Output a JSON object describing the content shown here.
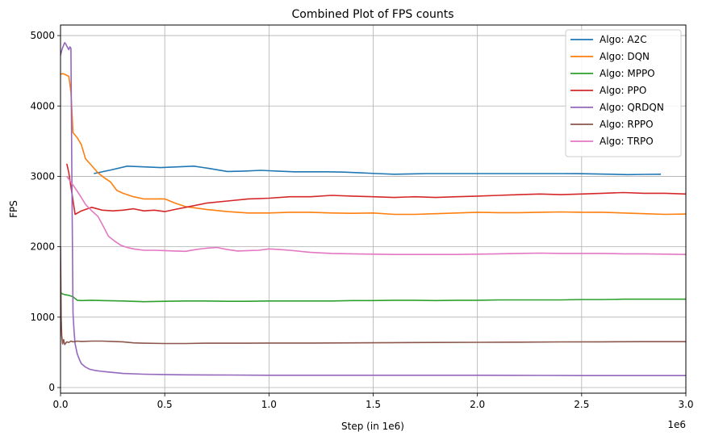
{
  "chart_data": {
    "type": "line",
    "title": "Combined Plot of FPS counts",
    "xlabel": "Step (in 1e6)",
    "ylabel": "FPS",
    "x_offset_label": "1e6",
    "xlim": [
      0,
      3.0
    ],
    "ylim": [
      -80,
      5150
    ],
    "xticks": [
      0.0,
      0.5,
      1.0,
      1.5,
      2.0,
      2.5,
      3.0
    ],
    "xtick_labels": [
      "0.0",
      "0.5",
      "1.0",
      "1.5",
      "2.0",
      "2.5",
      "3.0"
    ],
    "yticks": [
      0,
      1000,
      2000,
      3000,
      4000,
      5000
    ],
    "ytick_labels": [
      "0",
      "1000",
      "2000",
      "3000",
      "4000",
      "5000"
    ],
    "grid": true,
    "legend_position": "top-right",
    "series": [
      {
        "name": "Algo: A2C",
        "color": "#1f77b4",
        "x": [
          0.16,
          0.24,
          0.32,
          0.4,
          0.48,
          0.56,
          0.64,
          0.72,
          0.8,
          0.88,
          0.96,
          1.04,
          1.12,
          1.2,
          1.28,
          1.36,
          1.44,
          1.52,
          1.6,
          1.68,
          1.76,
          1.84,
          1.92,
          2.0,
          2.08,
          2.16,
          2.24,
          2.32,
          2.4,
          2.48,
          2.56,
          2.64,
          2.72,
          2.8,
          2.88
        ],
        "y": [
          3040,
          3090,
          3145,
          3135,
          3125,
          3135,
          3145,
          3110,
          3070,
          3075,
          3085,
          3075,
          3065,
          3065,
          3065,
          3060,
          3050,
          3040,
          3030,
          3035,
          3040,
          3040,
          3040,
          3040,
          3040,
          3040,
          3040,
          3040,
          3040,
          3038,
          3035,
          3030,
          3025,
          3028,
          3030
        ]
      },
      {
        "name": "Algo: DQN",
        "color": "#ff7f0e",
        "x": [
          0.0,
          0.01,
          0.02,
          0.04,
          0.05,
          0.06,
          0.08,
          0.1,
          0.12,
          0.15,
          0.18,
          0.21,
          0.24,
          0.27,
          0.3,
          0.35,
          0.4,
          0.45,
          0.5,
          0.55,
          0.6,
          0.7,
          0.8,
          0.9,
          1.0,
          1.1,
          1.2,
          1.3,
          1.4,
          1.5,
          1.6,
          1.7,
          1.8,
          1.9,
          2.0,
          2.1,
          2.2,
          2.3,
          2.4,
          2.5,
          2.6,
          2.7,
          2.8,
          2.9,
          3.0
        ],
        "y": [
          4450,
          4460,
          4450,
          4420,
          4200,
          3620,
          3550,
          3450,
          3250,
          3150,
          3050,
          2980,
          2920,
          2800,
          2760,
          2710,
          2680,
          2680,
          2680,
          2620,
          2570,
          2530,
          2500,
          2480,
          2480,
          2490,
          2490,
          2480,
          2475,
          2480,
          2460,
          2460,
          2470,
          2480,
          2490,
          2485,
          2485,
          2490,
          2495,
          2490,
          2490,
          2480,
          2470,
          2460,
          2465
        ]
      },
      {
        "name": "Algo: MPPO",
        "color": "#2ca02c",
        "x": [
          0.0,
          0.01,
          0.02,
          0.04,
          0.06,
          0.08,
          0.1,
          0.15,
          0.2,
          0.3,
          0.4,
          0.5,
          0.6,
          0.7,
          0.8,
          0.9,
          1.0,
          1.1,
          1.2,
          1.3,
          1.4,
          1.5,
          1.6,
          1.7,
          1.8,
          1.9,
          2.0,
          2.1,
          2.2,
          2.3,
          2.4,
          2.5,
          2.6,
          2.7,
          2.8,
          2.9,
          3.0
        ],
        "y": [
          1350,
          1330,
          1320,
          1310,
          1290,
          1240,
          1235,
          1240,
          1235,
          1230,
          1220,
          1225,
          1230,
          1230,
          1225,
          1225,
          1230,
          1230,
          1230,
          1230,
          1235,
          1235,
          1240,
          1240,
          1235,
          1240,
          1240,
          1245,
          1245,
          1245,
          1245,
          1250,
          1250,
          1255,
          1255,
          1255,
          1255
        ]
      },
      {
        "name": "Algo: PPO",
        "color": "#d62728",
        "x": [
          0.03,
          0.04,
          0.07,
          0.1,
          0.15,
          0.2,
          0.25,
          0.3,
          0.35,
          0.4,
          0.45,
          0.5,
          0.55,
          0.6,
          0.7,
          0.8,
          0.9,
          1.0,
          1.1,
          1.2,
          1.3,
          1.4,
          1.5,
          1.6,
          1.7,
          1.8,
          1.9,
          2.0,
          2.1,
          2.2,
          2.3,
          2.4,
          2.5,
          2.6,
          2.7,
          2.8,
          2.9,
          3.0
        ],
        "y": [
          3180,
          3050,
          2460,
          2510,
          2560,
          2520,
          2510,
          2520,
          2540,
          2510,
          2520,
          2500,
          2530,
          2560,
          2620,
          2650,
          2680,
          2690,
          2710,
          2710,
          2730,
          2720,
          2710,
          2700,
          2710,
          2700,
          2710,
          2720,
          2730,
          2740,
          2750,
          2740,
          2750,
          2760,
          2770,
          2760,
          2760,
          2750
        ]
      },
      {
        "name": "Algo: QRDQN",
        "color": "#9467bd",
        "x": [
          0.0,
          0.005,
          0.01,
          0.02,
          0.025,
          0.03,
          0.04,
          0.045,
          0.05,
          0.055,
          0.06,
          0.065,
          0.07,
          0.08,
          0.09,
          0.1,
          0.12,
          0.14,
          0.17,
          0.2,
          0.25,
          0.3,
          0.4,
          0.5,
          0.6,
          0.8,
          1.0,
          1.2,
          1.5,
          1.8,
          2.0,
          2.3,
          2.5,
          2.8,
          3.0
        ],
        "y": [
          4720,
          4780,
          4830,
          4900,
          4880,
          4850,
          4800,
          4840,
          4820,
          2800,
          1050,
          800,
          620,
          480,
          400,
          340,
          290,
          260,
          240,
          230,
          215,
          200,
          190,
          185,
          180,
          178,
          175,
          175,
          175,
          175,
          175,
          172,
          170,
          170,
          170
        ]
      },
      {
        "name": "Algo: RPPO",
        "color": "#8c564b",
        "x": [
          0.0,
          0.003,
          0.006,
          0.01,
          0.015,
          0.02,
          0.03,
          0.04,
          0.05,
          0.06,
          0.08,
          0.1,
          0.15,
          0.2,
          0.25,
          0.3,
          0.35,
          0.4,
          0.5,
          0.6,
          0.7,
          0.8,
          0.9,
          1.0,
          1.2,
          1.4,
          1.6,
          1.8,
          2.0,
          2.2,
          2.4,
          2.6,
          2.8,
          3.0
        ],
        "y": [
          2000,
          1000,
          740,
          620,
          680,
          610,
          650,
          640,
          660,
          650,
          660,
          655,
          660,
          660,
          655,
          650,
          635,
          630,
          625,
          625,
          630,
          630,
          630,
          632,
          632,
          635,
          638,
          640,
          642,
          645,
          648,
          650,
          652,
          652
        ]
      },
      {
        "name": "Algo: TRPO",
        "color": "#e377c2",
        "x": [
          0.03,
          0.05,
          0.08,
          0.1,
          0.12,
          0.15,
          0.18,
          0.2,
          0.23,
          0.26,
          0.29,
          0.32,
          0.35,
          0.4,
          0.45,
          0.5,
          0.55,
          0.6,
          0.65,
          0.7,
          0.75,
          0.8,
          0.85,
          0.9,
          0.95,
          1.0,
          1.05,
          1.1,
          1.2,
          1.3,
          1.4,
          1.5,
          1.6,
          1.7,
          1.8,
          1.9,
          2.0,
          2.1,
          2.2,
          2.3,
          2.4,
          2.5,
          2.6,
          2.7,
          2.8,
          2.9,
          3.0
        ],
        "y": [
          3000,
          2920,
          2790,
          2700,
          2600,
          2510,
          2430,
          2320,
          2150,
          2080,
          2020,
          1990,
          1970,
          1950,
          1950,
          1945,
          1940,
          1935,
          1960,
          1980,
          1990,
          1960,
          1940,
          1945,
          1950,
          1970,
          1960,
          1950,
          1920,
          1905,
          1900,
          1895,
          1890,
          1890,
          1890,
          1890,
          1895,
          1900,
          1905,
          1910,
          1905,
          1905,
          1905,
          1900,
          1900,
          1895,
          1890
        ]
      }
    ]
  }
}
